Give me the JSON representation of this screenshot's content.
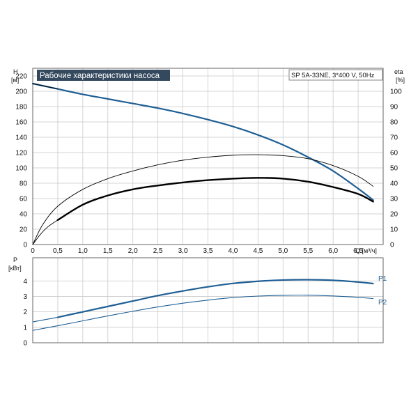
{
  "colors": {
    "grid": "#c9c9c9",
    "frame": "#666666",
    "head_curve": "#1f5f94",
    "p1_curve": "#1f5f94",
    "p2_curve": "#1f5f94",
    "eta_curve": "#000000",
    "title_bg": "#34495e"
  },
  "chart_data": [
    {
      "type": "line",
      "title": "Рабочие характеристики насоса",
      "model_label": "SP 5A-33NE, 3*400 V, 50Hz",
      "xlabel": "Q [м³/ч]",
      "ylabel_top": "H",
      "ylabel_unit": "[м]",
      "y2label_top": "eta",
      "y2label_unit": "[%]",
      "xlim": [
        0,
        7.0
      ],
      "ylim": [
        0,
        230
      ],
      "y2lim": [
        0,
        115
      ],
      "grid": true,
      "x_ticks": [
        "0",
        "0,5",
        "1,0",
        "1,5",
        "2,0",
        "2,5",
        "3,0",
        "3,5",
        "4,0",
        "4,5",
        "5,0",
        "5,5",
        "6,0",
        "6,5"
      ],
      "x_tick_values": [
        0,
        0.5,
        1.0,
        1.5,
        2.0,
        2.5,
        3.0,
        3.5,
        4.0,
        4.5,
        5.0,
        5.5,
        6.0,
        6.5
      ],
      "y_ticks": [
        "0",
        "20",
        "40",
        "60",
        "80",
        "100",
        "120",
        "140",
        "160",
        "180",
        "200",
        "220"
      ],
      "y_tick_values": [
        0,
        20,
        40,
        60,
        80,
        100,
        120,
        140,
        160,
        180,
        200,
        220
      ],
      "y2_ticks": [
        "0",
        "10",
        "20",
        "30",
        "40",
        "50",
        "60",
        "70",
        "80",
        "90",
        "100"
      ],
      "y2_tick_values": [
        0,
        10,
        20,
        30,
        40,
        50,
        60,
        70,
        80,
        90,
        100
      ],
      "series": [
        {
          "key": "head",
          "axis": "y",
          "style": "thick-blue",
          "x": [
            0,
            0.5,
            1.0,
            1.5,
            2.0,
            2.5,
            3.0,
            3.5,
            4.0,
            4.5,
            5.0,
            5.5,
            6.0,
            6.5,
            6.8
          ],
          "y": [
            210,
            203,
            196,
            190,
            184,
            178,
            171,
            163,
            154,
            143,
            130,
            114,
            96,
            73,
            58
          ]
        },
        {
          "key": "head_extension",
          "axis": "y",
          "style": "thin-black",
          "x": [
            0,
            0.5
          ],
          "y": [
            210,
            203
          ]
        },
        {
          "key": "eta",
          "axis": "y2",
          "style": "thin-black",
          "x": [
            0,
            0.2,
            0.5,
            1.0,
            1.5,
            2.0,
            2.5,
            3.0,
            3.5,
            4.0,
            4.5,
            5.0,
            5.5,
            6.0,
            6.5,
            6.8
          ],
          "y": [
            0,
            13,
            25,
            36,
            43,
            48,
            52,
            55,
            57,
            58.3,
            58.6,
            58,
            56,
            51.5,
            44.5,
            38
          ]
        },
        {
          "key": "eta_total",
          "axis": "y",
          "style": "thick-black",
          "x": [
            0.5,
            1.0,
            1.5,
            2.0,
            2.5,
            3.0,
            3.5,
            4.0,
            4.5,
            5.0,
            5.5,
            6.0,
            6.5,
            6.8
          ],
          "y": [
            32,
            52,
            64,
            72,
            77,
            81,
            84,
            86,
            87,
            86,
            82,
            75,
            66,
            56
          ]
        },
        {
          "key": "eta_total_extension",
          "axis": "y",
          "style": "thin-black",
          "x": [
            0,
            0.15,
            0.3,
            0.5
          ],
          "y": [
            0,
            13,
            23,
            32
          ]
        }
      ]
    },
    {
      "type": "line",
      "ylabel_top": "P",
      "ylabel_unit": "[кВт]",
      "xlim": [
        0,
        7.0
      ],
      "ylim": [
        0,
        5.5
      ],
      "grid": true,
      "y_ticks": [
        "0",
        "1",
        "2",
        "3",
        "4"
      ],
      "y_tick_values": [
        0,
        1,
        2,
        3,
        4
      ],
      "series": [
        {
          "key": "p1",
          "name": "P1",
          "style": "thick-blue",
          "x": [
            0.5,
            1.0,
            1.5,
            2.0,
            2.5,
            3.0,
            3.5,
            4.0,
            4.5,
            5.0,
            5.5,
            6.0,
            6.5,
            6.8
          ],
          "y": [
            1.65,
            2.0,
            2.35,
            2.7,
            3.05,
            3.35,
            3.62,
            3.84,
            3.98,
            4.06,
            4.08,
            4.04,
            3.93,
            3.83
          ]
        },
        {
          "key": "p1_extension",
          "name": "",
          "style": "thin-blue",
          "x": [
            0,
            0.5
          ],
          "y": [
            1.35,
            1.65
          ]
        },
        {
          "key": "p2",
          "name": "P2",
          "style": "thin-blue",
          "x": [
            0,
            0.5,
            1.0,
            1.5,
            2.0,
            2.5,
            3.0,
            3.5,
            4.0,
            4.5,
            5.0,
            5.5,
            6.0,
            6.5,
            6.8
          ],
          "y": [
            0.8,
            1.1,
            1.42,
            1.74,
            2.04,
            2.32,
            2.56,
            2.76,
            2.92,
            3.02,
            3.07,
            3.08,
            3.03,
            2.94,
            2.86
          ]
        }
      ]
    }
  ]
}
